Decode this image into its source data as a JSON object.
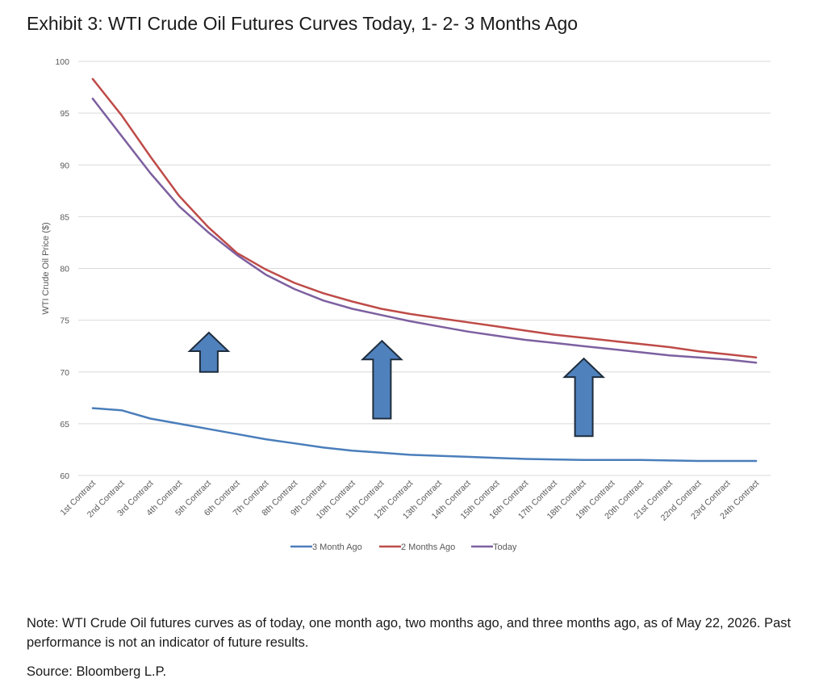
{
  "title": "Exhibit 3: WTI Crude Oil Futures Curves Today, 1- 2- 3 Months Ago",
  "note": "Note: WTI Crude Oil futures curves as of today, one month ago, two months ago, and three months ago, as of May 22, 2026. Past performance is not an indicator of future results.",
  "source": "Source: Bloomberg L.P.",
  "chart_data": {
    "type": "line",
    "ylabel": "WTI Crude Oil Price ($)",
    "xlabel": "",
    "ylim": [
      60,
      100
    ],
    "yticks": [
      60,
      65,
      70,
      75,
      80,
      85,
      90,
      95,
      100
    ],
    "grid": true,
    "legend_position": "bottom",
    "categories": [
      "1st Contract",
      "2nd Contract",
      "3rd Contract",
      "4th Contract",
      "5th Contract",
      "6th Contract",
      "7th Contract",
      "8th Contract",
      "9th Contract",
      "10th Contract",
      "11th Contract",
      "12th Contract",
      "13th Contract",
      "14th Contract",
      "15th Contract",
      "16th Contract",
      "17th Contract",
      "18th Contract",
      "19th Contract",
      "20th Contract",
      "21st Contract",
      "22nd Contract",
      "23rd Contract",
      "24th Contract"
    ],
    "series": [
      {
        "name": "3 Month Ago",
        "color": "#4a7ebb",
        "values": [
          66.5,
          66.3,
          65.5,
          65.0,
          64.5,
          64.0,
          63.5,
          63.1,
          62.7,
          62.4,
          62.2,
          62.0,
          61.9,
          61.8,
          61.7,
          61.6,
          61.55,
          61.5,
          61.5,
          61.5,
          61.45,
          61.4,
          61.4,
          61.4
        ]
      },
      {
        "name": "2 Months Ago",
        "color": "#be4b48",
        "values": [
          98.3,
          94.8,
          90.8,
          87.0,
          84.0,
          81.5,
          79.9,
          78.6,
          77.6,
          76.8,
          76.1,
          75.6,
          75.2,
          74.8,
          74.4,
          74.0,
          73.6,
          73.3,
          73.0,
          72.7,
          72.4,
          72.0,
          71.7,
          71.4
        ]
      },
      {
        "name": "Today",
        "color": "#7d60a0",
        "values": [
          96.4,
          92.8,
          89.2,
          86.0,
          83.5,
          81.3,
          79.4,
          78.0,
          76.9,
          76.1,
          75.5,
          74.9,
          74.4,
          73.9,
          73.5,
          73.1,
          72.8,
          72.5,
          72.2,
          71.9,
          71.6,
          71.4,
          71.2,
          70.9
        ]
      }
    ],
    "annotations": [
      {
        "type": "up-arrow",
        "category_index": 4,
        "from": 70,
        "to": 73.8
      },
      {
        "type": "up-arrow",
        "category_index": 10,
        "from": 65.5,
        "to": 73.0
      },
      {
        "type": "up-arrow",
        "category_index": 17,
        "from": 63.8,
        "to": 71.3
      }
    ],
    "arrow_color": "#4f81bd"
  }
}
